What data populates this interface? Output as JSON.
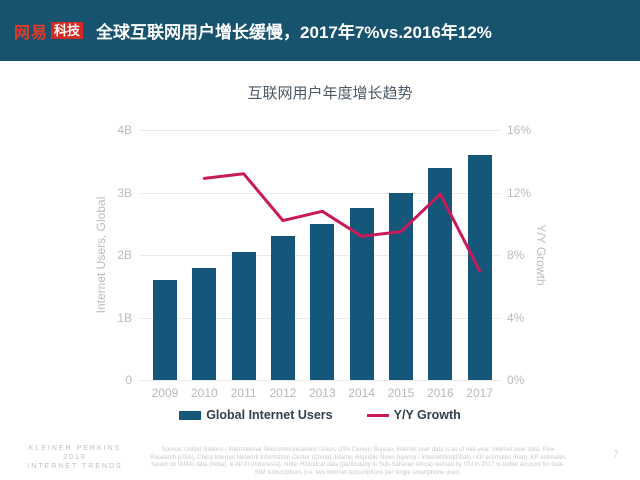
{
  "header": {
    "logo": {
      "brand": "网易",
      "badge": "科技"
    },
    "title": "全球互联网用户增长缓慢，2017年7%vs.2016年12%"
  },
  "chart_data": {
    "type": "bar",
    "title": "互联网用户年度增长趋势",
    "categories": [
      "2009",
      "2010",
      "2011",
      "2012",
      "2013",
      "2014",
      "2015",
      "2016",
      "2017"
    ],
    "series": [
      {
        "name": "Global Internet Users",
        "type": "bar",
        "axis": "left",
        "unit": "billions",
        "color": "#15577B",
        "values": [
          1.6,
          1.8,
          2.05,
          2.3,
          2.5,
          2.75,
          3.0,
          3.4,
          3.6
        ]
      },
      {
        "name": "Y/Y Growth",
        "type": "line",
        "axis": "right",
        "unit": "percent",
        "color": "#C81A58",
        "values": [
          null,
          12.9,
          13.2,
          10.2,
          10.8,
          9.2,
          9.5,
          11.9,
          7.0
        ]
      }
    ],
    "left_axis": {
      "label": "Internet Users, Global",
      "ticks": [
        "0",
        "1B",
        "2B",
        "3B",
        "4B"
      ],
      "range": [
        0,
        4
      ]
    },
    "right_axis": {
      "label": "Y/Y Growth",
      "ticks": [
        "0%",
        "4%",
        "8%",
        "12%",
        "16%"
      ],
      "range": [
        0,
        16
      ]
    },
    "grid": true,
    "legend_position": "bottom"
  },
  "footer": {
    "brand_lines": [
      "KLEINER PERKINS",
      "2018",
      "INTERNET TRENDS"
    ],
    "source": "Source: United Nations / International Telecommunications Union, USA Census Bureau. Internet user data is as of mid-year. Internet user data: Pew Research (USA), China Internet Network Information Center (China), Islamic Republic News Agency / InternetWorldStats / KP estimates (Iran), KP estimates based on IAMAI data (India), & APJII (Indonesia). Note: Historical data (particularly in Sub-Saharan Africa) revised by ITU in 2017 to better account for dual-SIM subscriptions (i.e. two internet subscriptions per single smartphone user).",
    "page_number": "7"
  },
  "colors": {
    "header_bg": "#17536F",
    "bar": "#15577B",
    "line": "#C81A58",
    "logo_red": "#D22B24",
    "grid": "#E9EAEC",
    "tick_text": "#B7BCC1",
    "legend_text": "#32414D"
  }
}
